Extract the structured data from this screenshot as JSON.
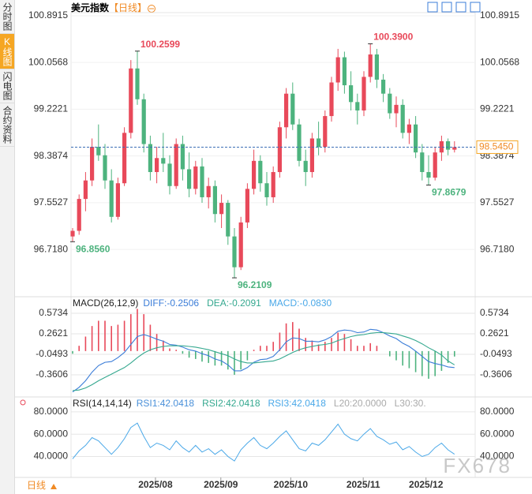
{
  "title": "美元指数",
  "period": "【日线】",
  "tabs": [
    "分时图",
    "K线图",
    "闪电图",
    "合约资料"
  ],
  "footer": "日线",
  "watermark": "FX678",
  "chart_data": [
    {
      "type": "candlestick",
      "ylim": [
        95.93,
        101.06
      ],
      "yticks": [
        100.8915,
        100.0568,
        99.2221,
        98.3874,
        97.5527,
        {
          "value": 96.718,
          "label": "96.7180"
        }
      ],
      "up_color": "#e8495a",
      "down_color": "#4db37e",
      "last_price": {
        "value": 98.545,
        "label": "98.5450"
      },
      "xticks": [
        {
          "value": 12.8,
          "label": "2025/08"
        },
        {
          "value": 22.9,
          "label": "2025/09"
        },
        {
          "value": 33.7,
          "label": "2025/10"
        },
        {
          "value": 44.9,
          "label": "2025/11"
        },
        {
          "value": 54.6,
          "label": "2025/12"
        }
      ],
      "annotations": [
        {
          "text": "100.2599",
          "candle": 10,
          "at": "high"
        },
        {
          "text": "100.3900",
          "candle": 46,
          "at": "high"
        },
        {
          "text": "96.8560",
          "candle": 0,
          "at": "low"
        },
        {
          "text": "96.2109",
          "candle": 25,
          "at": "low"
        },
        {
          "text": "97.8679",
          "candle": 55,
          "at": "low"
        }
      ],
      "ohlc": [
        [
          96.95,
          97.1,
          96.856,
          97.05
        ],
        [
          97.05,
          97.7,
          96.98,
          97.62
        ],
        [
          97.62,
          98.1,
          97.4,
          97.95
        ],
        [
          97.95,
          98.7,
          97.85,
          98.55
        ],
        [
          98.55,
          98.95,
          98.3,
          98.4
        ],
        [
          98.4,
          98.6,
          97.8,
          97.95
        ],
        [
          97.95,
          98.15,
          97.2,
          97.3
        ],
        [
          97.3,
          98,
          97.25,
          97.9
        ],
        [
          97.9,
          98.9,
          97.85,
          98.8
        ],
        [
          98.8,
          100.1,
          98.7,
          99.95
        ],
        [
          99.95,
          100.2599,
          99.3,
          99.4
        ],
        [
          99.4,
          99.5,
          98.45,
          98.6
        ],
        [
          98.6,
          98.75,
          97.95,
          98.1
        ],
        [
          98.1,
          98.55,
          97.9,
          98.35
        ],
        [
          98.35,
          98.8,
          98.1,
          98.25
        ],
        [
          98.25,
          98.4,
          97.7,
          97.85
        ],
        [
          97.85,
          98.7,
          97.8,
          98.6
        ],
        [
          98.6,
          98.75,
          97.95,
          98.15
        ],
        [
          98.15,
          98.45,
          97.65,
          97.8
        ],
        [
          97.8,
          98.3,
          97.7,
          98.2
        ],
        [
          98.2,
          98.35,
          97.55,
          97.65
        ],
        [
          97.65,
          98,
          97.45,
          97.85
        ],
        [
          97.85,
          97.95,
          97.2,
          97.35
        ],
        [
          97.35,
          97.7,
          97.1,
          97.55
        ],
        [
          97.55,
          97.6,
          96.8,
          96.95
        ],
        [
          96.95,
          97.1,
          96.2109,
          96.4
        ],
        [
          96.4,
          97.3,
          96.35,
          97.2
        ],
        [
          97.2,
          97.9,
          97.1,
          97.8
        ],
        [
          97.8,
          98.5,
          97.7,
          98.3
        ],
        [
          98.3,
          98.4,
          97.75,
          97.9
        ],
        [
          97.9,
          98.1,
          97.5,
          97.65
        ],
        [
          97.65,
          98.2,
          97.55,
          98.1
        ],
        [
          98.1,
          99,
          98,
          98.9
        ],
        [
          98.9,
          99.6,
          98.7,
          99.5
        ],
        [
          99.5,
          99.7,
          98.85,
          98.95
        ],
        [
          98.95,
          99.05,
          98.2,
          98.3
        ],
        [
          98.3,
          98.5,
          97.85,
          98.1
        ],
        [
          98.1,
          98.8,
          98,
          98.7
        ],
        [
          98.7,
          99,
          98.4,
          98.55
        ],
        [
          98.55,
          99.2,
          98.45,
          99.1
        ],
        [
          99.1,
          99.8,
          99,
          99.7
        ],
        [
          99.7,
          100.3,
          99.55,
          100.15
        ],
        [
          100.15,
          100.25,
          99.5,
          99.65
        ],
        [
          99.65,
          99.9,
          99.2,
          99.35
        ],
        [
          99.35,
          99.5,
          98.95,
          99.2
        ],
        [
          99.2,
          99.9,
          99.1,
          99.8
        ],
        [
          99.8,
          100.39,
          99.7,
          100.2
        ],
        [
          100.2,
          100.3,
          99.6,
          99.75
        ],
        [
          99.75,
          99.85,
          99.35,
          99.5
        ],
        [
          99.5,
          99.6,
          99.05,
          99.15
        ],
        [
          99.15,
          99.45,
          98.9,
          99.3
        ],
        [
          99.3,
          99.4,
          98.7,
          98.8
        ],
        [
          98.8,
          99.05,
          98.6,
          98.95
        ],
        [
          98.95,
          99.1,
          98.35,
          98.45
        ],
        [
          98.45,
          98.6,
          97.95,
          98.1
        ],
        [
          98.1,
          98.4,
          97.8679,
          98
        ],
        [
          98,
          98.55,
          97.95,
          98.45
        ],
        [
          98.45,
          98.75,
          98.3,
          98.65
        ],
        [
          98.65,
          98.7,
          98.4,
          98.5
        ],
        [
          98.5,
          98.65,
          98.45,
          98.545
        ]
      ]
    },
    {
      "type": "macd",
      "title": "MACD(26,12,9)",
      "ylim": [
        -0.66,
        0.717
      ],
      "yticks": [
        0.5734,
        0.2621,
        -0.0493,
        -0.3606
      ],
      "legend": [
        {
          "text": "DIFF:-0.2506",
          "color": "#3b7dd8"
        },
        {
          "text": "DEA:-0.2091",
          "color": "#35a88f"
        },
        {
          "text": "MACD:-0.0830",
          "color": "#4aa8e8"
        }
      ],
      "up_color": "#e8495a",
      "down_color": "#4db37e",
      "series": [
        {
          "name": "DIFF",
          "color": "#3b7dd8",
          "values": [
            -0.62,
            -0.55,
            -0.45,
            -0.32,
            -0.22,
            -0.17,
            -0.16,
            -0.1,
            -0.02,
            0.1,
            0.22,
            0.25,
            0.22,
            0.18,
            0.15,
            0.1,
            0.09,
            0.06,
            0.02,
            0,
            -0.04,
            -0.07,
            -0.12,
            -0.15,
            -0.21,
            -0.3,
            -0.3,
            -0.25,
            -0.17,
            -0.13,
            -0.12,
            -0.08,
            0.02,
            0.14,
            0.2,
            0.19,
            0.15,
            0.15,
            0.14,
            0.17,
            0.22,
            0.3,
            0.32,
            0.31,
            0.28,
            0.29,
            0.33,
            0.32,
            0.28,
            0.23,
            0.19,
            0.12,
            0.07,
            0,
            -0.08,
            -0.16,
            -0.19,
            -0.21,
            -0.24,
            -0.2506
          ]
        },
        {
          "name": "DEA",
          "color": "#35a88f",
          "values": [
            -0.6,
            -0.59,
            -0.56,
            -0.51,
            -0.45,
            -0.4,
            -0.35,
            -0.3,
            -0.25,
            -0.18,
            -0.1,
            -0.03,
            0.02,
            0.05,
            0.07,
            0.08,
            0.08,
            0.08,
            0.07,
            0.06,
            0.04,
            0.02,
            -0.01,
            -0.04,
            -0.07,
            -0.12,
            -0.16,
            -0.18,
            -0.18,
            -0.17,
            -0.16,
            -0.15,
            -0.12,
            -0.07,
            -0.02,
            0.02,
            0.05,
            0.07,
            0.09,
            0.1,
            0.12,
            0.16,
            0.19,
            0.22,
            0.24,
            0.25,
            0.27,
            0.28,
            0.28,
            0.27,
            0.26,
            0.23,
            0.2,
            0.16,
            0.11,
            0.05,
            0,
            -0.06,
            -0.15,
            -0.2091
          ]
        }
      ],
      "histogram": [
        -0.04,
        0.08,
        0.22,
        0.38,
        0.46,
        0.46,
        0.38,
        0.4,
        0.46,
        0.56,
        0.64,
        0.56,
        0.4,
        0.26,
        0.16,
        0.04,
        0.02,
        -0.04,
        -0.1,
        -0.12,
        -0.16,
        -0.18,
        -0.22,
        -0.22,
        -0.28,
        -0.36,
        -0.28,
        -0.14,
        0.02,
        0.08,
        0.08,
        0.14,
        0.28,
        0.42,
        0.44,
        0.34,
        0.2,
        0.16,
        0.1,
        0.14,
        0.2,
        0.28,
        0.26,
        0.18,
        0.08,
        0.08,
        0.12,
        0.08,
        0,
        -0.08,
        -0.14,
        -0.22,
        -0.26,
        -0.32,
        -0.38,
        -0.42,
        -0.38,
        -0.3,
        -0.18,
        -0.083
      ]
    },
    {
      "type": "line",
      "title": "RSI(14,14,14)",
      "ylim": [
        22,
        87
      ],
      "yticks": [
        {
          "value": 80,
          "label": "80.0000"
        },
        {
          "value": 60,
          "label": "60.0000"
        },
        {
          "value": 40,
          "label": "40.0000"
        }
      ],
      "legend": [
        {
          "text": "RSI1:42.0418",
          "color": "#4a90d9"
        },
        {
          "text": "RSI2:42.0418",
          "color": "#35a88f"
        },
        {
          "text": "RSI3:42.0418",
          "color": "#4aa8e8"
        },
        {
          "text": "L20:20.0000",
          "color": "#aaaaaa"
        },
        {
          "text": "L30:30.",
          "color": "#aaaaaa"
        }
      ],
      "series": [
        {
          "name": "RSI",
          "color": "#4aa8e8",
          "values": [
            38,
            45,
            50,
            57,
            54,
            48,
            42,
            48,
            56,
            66,
            70,
            58,
            48,
            52,
            50,
            46,
            54,
            48,
            44,
            50,
            44,
            47,
            42,
            46,
            40,
            36,
            46,
            52,
            57,
            50,
            47,
            52,
            58,
            63,
            55,
            47,
            45,
            52,
            50,
            55,
            62,
            69,
            60,
            56,
            54,
            60,
            65,
            58,
            55,
            51,
            53,
            46,
            49,
            44,
            40,
            42,
            48,
            52,
            46,
            42.0418
          ]
        }
      ]
    }
  ]
}
